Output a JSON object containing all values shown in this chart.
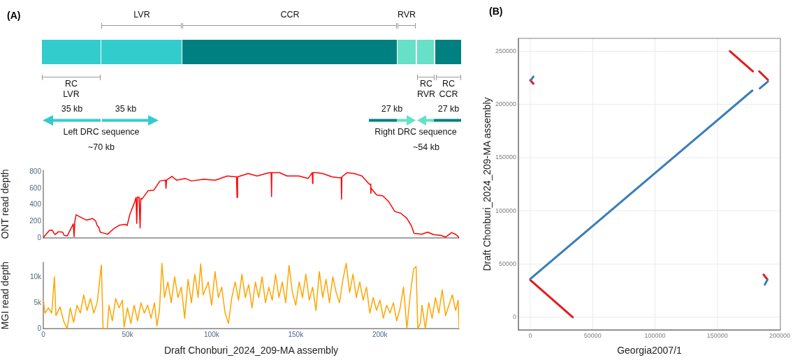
{
  "chart_data": [
    {
      "type": "other",
      "title": "(A)",
      "annotations": [
        "LVR",
        "CCR",
        "RVR",
        "RC\nLVR",
        "RC\nRVR",
        "RC\nCCR",
        "35 kb",
        "35 kb",
        "Left DRC sequence",
        "~70 kb",
        "27 kb",
        "27 kb",
        "Right DRC sequence",
        "~54 kb"
      ]
    },
    {
      "type": "line",
      "ylabel": "ONT read depth",
      "color": "#ff0000",
      "xlim": [
        0,
        247000
      ],
      "xticks": [
        0,
        50000,
        100000,
        150000,
        200000
      ],
      "ylim": [
        0,
        820
      ],
      "yticks": [
        0,
        200,
        400,
        600,
        800
      ],
      "tick_labels": "y",
      "x": [
        0,
        3600,
        5300,
        6200,
        7100,
        8900,
        11500,
        12400,
        14200,
        17800,
        18300,
        18700,
        19500,
        23100,
        25800,
        29300,
        31100,
        32000,
        32900,
        33800,
        35500,
        38200,
        41800,
        45300,
        48900,
        49800,
        51500,
        54200,
        55100,
        55500,
        55900,
        56900,
        57500,
        57900,
        58600,
        62200,
        65700,
        69300,
        72600,
        72900,
        73200,
        76400,
        79100,
        84400,
        88000,
        95100,
        102200,
        109300,
        114800,
        115100,
        115400,
        121700,
        127000,
        134200,
        135400,
        135600,
        135800,
        140400,
        144800,
        151900,
        157300,
        159800,
        160000,
        160200,
        162600,
        166100,
        171500,
        175900,
        177000,
        177200,
        177400,
        180400,
        184800,
        189300,
        193700,
        194500,
        194600,
        194800,
        198100,
        201700,
        205200,
        208800,
        212300,
        215900,
        218600,
        220300,
        224800,
        228300,
        231900,
        236300,
        239000,
        242600,
        245200,
        247000
      ],
      "values": [
        5,
        90,
        95,
        60,
        40,
        75,
        70,
        30,
        25,
        170,
        15,
        200,
        280,
        240,
        215,
        235,
        205,
        150,
        130,
        70,
        60,
        45,
        110,
        155,
        165,
        150,
        290,
        430,
        490,
        175,
        495,
        495,
        120,
        480,
        470,
        570,
        580,
        690,
        700,
        600,
        700,
        745,
        700,
        720,
        690,
        710,
        700,
        750,
        740,
        490,
        740,
        780,
        750,
        790,
        790,
        500,
        790,
        790,
        750,
        750,
        720,
        790,
        660,
        790,
        790,
        780,
        740,
        730,
        730,
        470,
        740,
        790,
        780,
        750,
        650,
        650,
        540,
        600,
        520,
        510,
        440,
        320,
        300,
        240,
        150,
        55,
        45,
        70,
        40,
        30,
        10,
        65,
        40,
        5
      ]
    },
    {
      "type": "line",
      "xlabel": "Draft Chonburi_2024_209-MA assembly",
      "ylabel": "MGI read depth",
      "color": "#ffa500",
      "xlim": [
        0,
        247000
      ],
      "ylim": [
        0,
        12800
      ],
      "xticks": [
        0,
        {
          "value": 50000,
          "label": "50k"
        },
        {
          "value": 100000,
          "label": "100k"
        },
        {
          "value": 150000,
          "label": "150k"
        },
        {
          "value": 200000,
          "label": "200k"
        }
      ],
      "yticks": [
        0,
        {
          "value": 5000,
          "label": "5k"
        },
        {
          "value": 10000,
          "label": "10k"
        }
      ],
      "x": [
        0,
        1000,
        3000,
        5000,
        6600,
        7500,
        10000,
        12000,
        14200,
        16000,
        18000,
        20000,
        22000,
        24000,
        26000,
        28000,
        30000,
        32000,
        34500,
        35500,
        38000,
        39000,
        41000,
        43000,
        45000,
        47000,
        48000,
        50000,
        52000,
        54000,
        56000,
        58000,
        60000,
        62000,
        64000,
        66000,
        67500,
        69000,
        70500,
        72000,
        74000,
        76000,
        78000,
        80000,
        82000,
        84000,
        86000,
        88000,
        90000,
        92000,
        93500,
        95000,
        98000,
        100000,
        102000,
        104000,
        106000,
        108000,
        110000,
        112000,
        114000,
        116000,
        118000,
        120000,
        122000,
        124000,
        126000,
        128000,
        130000,
        132000,
        134000,
        136000,
        138000,
        140000,
        142000,
        144000,
        146000,
        148000,
        150000,
        152000,
        154000,
        156000,
        158000,
        160000,
        162000,
        164000,
        166000,
        168000,
        170000,
        172000,
        174000,
        176000,
        178000,
        180000,
        182000,
        184000,
        186000,
        188000,
        190000,
        192000,
        194000,
        196000,
        198000,
        200000,
        202000,
        204000,
        206000,
        208000,
        210000,
        212000,
        214000,
        216000,
        218000,
        220000,
        221500,
        222500,
        224000,
        225000,
        227000,
        229000,
        231000,
        233000,
        235000,
        237000,
        239000,
        241000,
        243000,
        245000,
        246500,
        247000
      ],
      "values": [
        5500,
        3000,
        4000,
        3000,
        10000,
        2500,
        4200,
        1500,
        0,
        4000,
        1200,
        4500,
        3000,
        6500,
        3500,
        5800,
        3000,
        5000,
        12300,
        0,
        0,
        4500,
        1500,
        5800,
        4000,
        5500,
        300,
        4000,
        1000,
        4500,
        1500,
        5000,
        3000,
        4500,
        2000,
        5000,
        500,
        3500,
        12600,
        6000,
        9000,
        5000,
        10000,
        6000,
        8000,
        2000,
        9500,
        5000,
        10500,
        6000,
        12500,
        6500,
        9000,
        4500,
        11000,
        6000,
        8000,
        3000,
        1000,
        6000,
        9000,
        5500,
        10500,
        6000,
        8500,
        4000,
        9000,
        6000,
        10000,
        5000,
        8000,
        5500,
        10500,
        6000,
        9000,
        5000,
        12200,
        7000,
        4500,
        9000,
        6000,
        10500,
        5500,
        8000,
        3500,
        11000,
        6000,
        9500,
        5000,
        10000,
        7000,
        5000,
        9500,
        12600,
        7000,
        10500,
        6000,
        9000,
        5500,
        8000,
        3000,
        6000,
        3500,
        5500,
        2000,
        4500,
        3000,
        5000,
        1500,
        4000,
        8000,
        0,
        6500,
        11500,
        12000,
        0,
        1000,
        4500,
        0,
        5000,
        2000,
        6000,
        3000,
        7500,
        2500,
        4500,
        6500,
        3500,
        5500,
        0
      ]
    },
    {
      "type": "line",
      "title": "(B)",
      "xlabel": "Georgia2007/1",
      "ylabel": "Draft Chonburi_2024_209-MA assembly",
      "xlim": [
        -9500,
        200500
      ],
      "ylim": [
        -12000,
        262000
      ],
      "xticks": [
        0,
        50000,
        100000,
        150000,
        200000
      ],
      "yticks": [
        0,
        50000,
        100000,
        150000,
        200000,
        250000
      ],
      "grid": true,
      "series": [
        {
          "color": "#377eb8",
          "x": [
            0,
            178000
          ],
          "values": [
            36000,
            213000
          ]
        },
        {
          "color": "#377eb8",
          "x": [
            184000,
            190500
          ],
          "values": [
            215000,
            221500
          ]
        },
        {
          "color": "#377eb8",
          "x": [
            500,
            2500
          ],
          "values": [
            222700,
            226000
          ]
        },
        {
          "color": "#377eb8",
          "x": [
            188000,
            190000
          ],
          "values": [
            30700,
            35000
          ]
        },
        {
          "color": "#e41a1c",
          "x": [
            0,
            34000
          ],
          "values": [
            35000,
            0
          ]
        },
        {
          "color": "#e41a1c",
          "x": [
            160000,
            178500
          ],
          "values": [
            250000,
            231000
          ]
        },
        {
          "color": "#e41a1c",
          "x": [
            183500,
            190500
          ],
          "values": [
            231000,
            223000
          ]
        },
        {
          "color": "#e41a1c",
          "x": [
            0,
            2500
          ],
          "values": [
            222700,
            219400
          ]
        },
        {
          "color": "#e41a1c",
          "x": [
            187000,
            190000
          ],
          "values": [
            40000,
            35600
          ]
        }
      ]
    }
  ]
}
